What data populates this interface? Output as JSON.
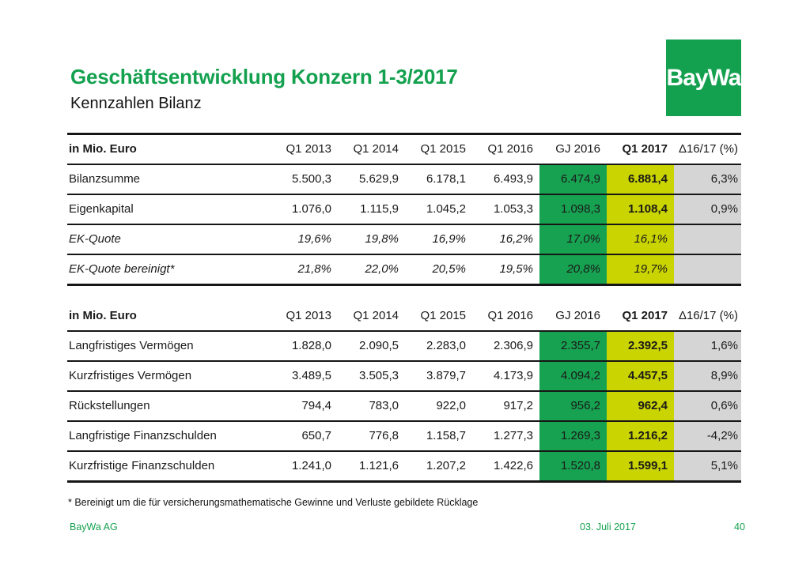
{
  "page": {
    "title": "Geschäftsentwicklung Konzern 1-3/2017",
    "subtitle": "Kennzahlen Bilanz",
    "logo_text": "BayWa",
    "footnote": "* Bereinigt um die für versicherungsmathematische Gewinne und Verluste gebildete Rücklage",
    "footer": {
      "company": "BayWa AG",
      "date": "03. Juli 2017",
      "page_number": "40"
    }
  },
  "colors": {
    "accent_green": "#14A14F",
    "cell_green": "#17A251",
    "cell_yellow": "#CAD400",
    "cell_gray": "#D5D5D5"
  },
  "tables": [
    {
      "unit_label": "in Mio. Euro",
      "columns": [
        "Q1 2013",
        "Q1 2014",
        "Q1 2015",
        "Q1 2016",
        "GJ 2016",
        "Q1 2017",
        "Δ16/17 (%)"
      ],
      "highlight_columns": {
        "green_index": 4,
        "yellow_index": 5,
        "gray_index": 6
      },
      "rows": [
        {
          "label": "Bilanzsumme",
          "italic": false,
          "values": [
            "5.500,3",
            "5.629,9",
            "6.178,1",
            "6.493,9",
            "6.474,9",
            "6.881,4",
            "6,3%"
          ]
        },
        {
          "label": "Eigenkapital",
          "italic": false,
          "values": [
            "1.076,0",
            "1.115,9",
            "1.045,2",
            "1.053,3",
            "1.098,3",
            "1.108,4",
            "0,9%"
          ]
        },
        {
          "label": "EK-Quote",
          "italic": true,
          "values": [
            "19,6%",
            "19,8%",
            "16,9%",
            "16,2%",
            "17,0%",
            "16,1%",
            ""
          ]
        },
        {
          "label": "EK-Quote bereinigt*",
          "italic": true,
          "values": [
            "21,8%",
            "22,0%",
            "20,5%",
            "19,5%",
            "20,8%",
            "19,7%",
            ""
          ]
        }
      ]
    },
    {
      "unit_label": "in Mio. Euro",
      "columns": [
        "Q1 2013",
        "Q1 2014",
        "Q1 2015",
        "Q1 2016",
        "GJ 2016",
        "Q1 2017",
        "Δ16/17 (%)"
      ],
      "highlight_columns": {
        "green_index": 4,
        "yellow_index": 5,
        "gray_index": 6
      },
      "rows": [
        {
          "label": "Langfristiges Vermögen",
          "italic": false,
          "values": [
            "1.828,0",
            "2.090,5",
            "2.283,0",
            "2.306,9",
            "2.355,7",
            "2.392,5",
            "1,6%"
          ]
        },
        {
          "label": "Kurzfristiges Vermögen",
          "italic": false,
          "values": [
            "3.489,5",
            "3.505,3",
            "3.879,7",
            "4.173,9",
            "4.094,2",
            "4.457,5",
            "8,9%"
          ]
        },
        {
          "label": "Rückstellungen",
          "italic": false,
          "values": [
            "794,4",
            "783,0",
            "922,0",
            "917,2",
            "956,2",
            "962,4",
            "0,6%"
          ]
        },
        {
          "label": "Langfristige Finanzschulden",
          "italic": false,
          "values": [
            "650,7",
            "776,8",
            "1.158,7",
            "1.277,3",
            "1.269,3",
            "1.216,2",
            "-4,2%"
          ]
        },
        {
          "label": "Kurzfristige Finanzschulden",
          "italic": false,
          "values": [
            "1.241,0",
            "1.121,6",
            "1.207,2",
            "1.422,6",
            "1.520,8",
            "1.599,1",
            "5,1%"
          ]
        }
      ]
    }
  ]
}
